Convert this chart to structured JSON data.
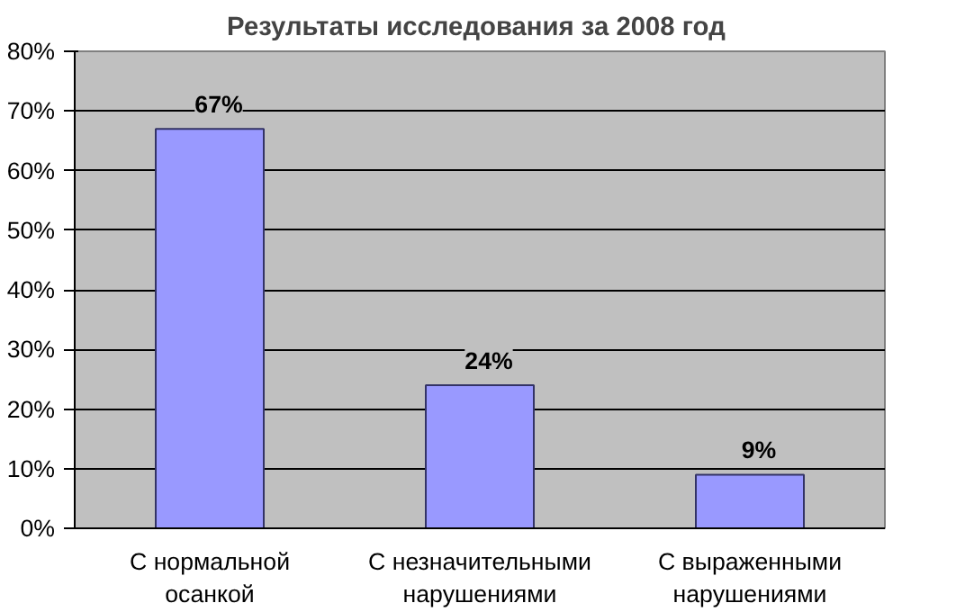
{
  "chart_data": {
    "type": "bar",
    "title": "Результаты  исследования за 2008 год",
    "categories": [
      "С нормальной осанкой",
      "С незначительными нарушениями",
      "С выраженными нарушениями"
    ],
    "values": [
      67,
      24,
      9
    ],
    "color": "#9999ff",
    "value_labels": [
      "67%",
      "24%",
      "9%"
    ],
    "ylim": [
      0,
      80
    ],
    "yticks": [
      {
        "value": 0,
        "label": "0%"
      },
      {
        "value": 10,
        "label": "10%"
      },
      {
        "value": 20,
        "label": "20%"
      },
      {
        "value": 30,
        "label": "30%"
      },
      {
        "value": 40,
        "label": "40%"
      },
      {
        "value": 50,
        "label": "50%"
      },
      {
        "value": 60,
        "label": "60%"
      },
      {
        "value": 70,
        "label": "70%"
      },
      {
        "value": 80,
        "label": "80%"
      }
    ],
    "grid": "y"
  }
}
